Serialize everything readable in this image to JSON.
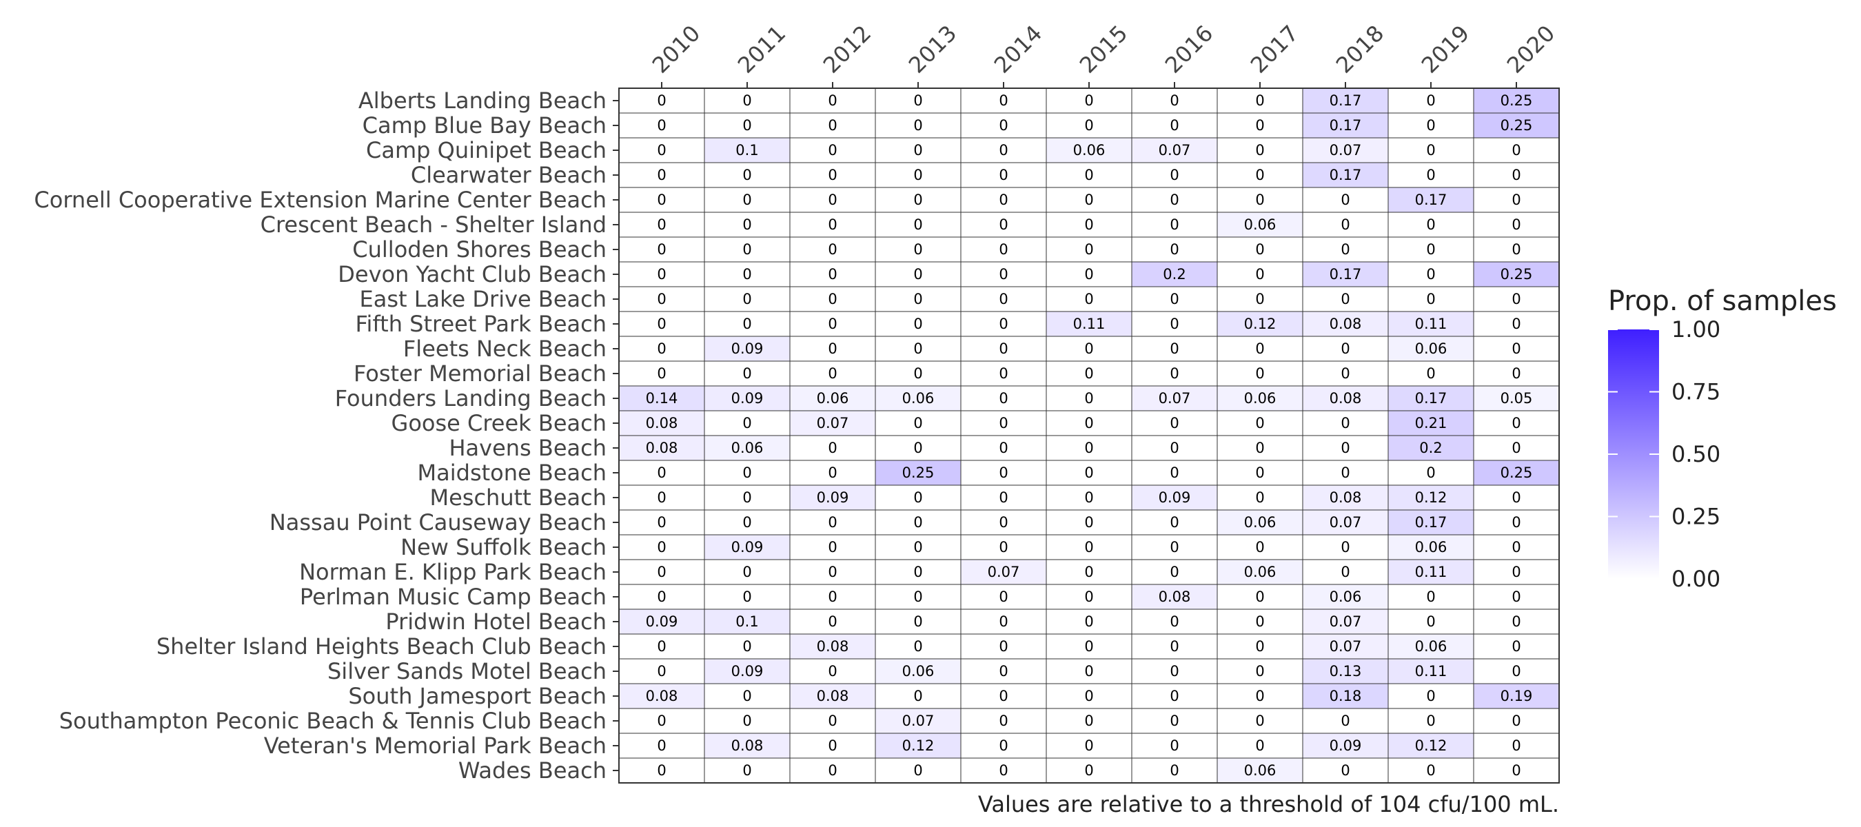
{
  "chart_data": {
    "type": "heatmap",
    "title": "",
    "xlabel": "",
    "ylabel": "",
    "x": [
      "2010",
      "2011",
      "2012",
      "2013",
      "2014",
      "2015",
      "2016",
      "2017",
      "2018",
      "2019",
      "2020"
    ],
    "y": [
      "Alberts Landing Beach",
      "Camp Blue Bay Beach",
      "Camp Quinipet Beach",
      "Clearwater Beach",
      "Cornell Cooperative Extension Marine Center Beach",
      "Crescent Beach - Shelter Island",
      "Culloden Shores Beach",
      "Devon Yacht Club Beach",
      "East Lake Drive Beach",
      "Fifth Street Park Beach",
      "Fleets Neck Beach",
      "Foster Memorial Beach",
      "Founders Landing Beach",
      "Goose Creek Beach",
      "Havens Beach",
      "Maidstone Beach",
      "Meschutt Beach",
      "Nassau Point Causeway Beach",
      "New Suffolk Beach",
      "Norman E. Klipp Park Beach",
      "Perlman Music Camp Beach",
      "Pridwin Hotel Beach",
      "Shelter Island Heights Beach Club Beach",
      "Silver Sands Motel Beach",
      "South Jamesport Beach",
      "Southampton Peconic Beach & Tennis Club Beach",
      "Veteran's Memorial Park Beach",
      "Wades Beach"
    ],
    "values": [
      [
        0,
        0,
        0,
        0,
        0,
        0,
        0,
        0,
        0.17,
        0,
        0.25
      ],
      [
        0,
        0,
        0,
        0,
        0,
        0,
        0,
        0,
        0.17,
        0,
        0.25
      ],
      [
        0,
        0.1,
        0,
        0,
        0,
        0.06,
        0.07,
        0,
        0.07,
        0,
        0
      ],
      [
        0,
        0,
        0,
        0,
        0,
        0,
        0,
        0,
        0.17,
        0,
        0
      ],
      [
        0,
        0,
        0,
        0,
        0,
        0,
        0,
        0,
        0,
        0.17,
        0
      ],
      [
        0,
        0,
        0,
        0,
        0,
        0,
        0,
        0.06,
        0,
        0,
        0
      ],
      [
        0,
        0,
        0,
        0,
        0,
        0,
        0,
        0,
        0,
        0,
        0
      ],
      [
        0,
        0,
        0,
        0,
        0,
        0,
        0.2,
        0,
        0.17,
        0,
        0.25
      ],
      [
        0,
        0,
        0,
        0,
        0,
        0,
        0,
        0,
        0,
        0,
        0
      ],
      [
        0,
        0,
        0,
        0,
        0,
        0.11,
        0,
        0.12,
        0.08,
        0.11,
        0
      ],
      [
        0,
        0.09,
        0,
        0,
        0,
        0,
        0,
        0,
        0,
        0.06,
        0
      ],
      [
        0,
        0,
        0,
        0,
        0,
        0,
        0,
        0,
        0,
        0,
        0
      ],
      [
        0.14,
        0.09,
        0.06,
        0.06,
        0,
        0,
        0.07,
        0.06,
        0.08,
        0.17,
        0.05
      ],
      [
        0.08,
        0,
        0.07,
        0,
        0,
        0,
        0,
        0,
        0,
        0.21,
        0
      ],
      [
        0.08,
        0.06,
        0,
        0,
        0,
        0,
        0,
        0,
        0,
        0.2,
        0
      ],
      [
        0,
        0,
        0,
        0.25,
        0,
        0,
        0,
        0,
        0,
        0,
        0.25
      ],
      [
        0,
        0,
        0.09,
        0,
        0,
        0,
        0.09,
        0,
        0.08,
        0.12,
        0
      ],
      [
        0,
        0,
        0,
        0,
        0,
        0,
        0,
        0.06,
        0.07,
        0.17,
        0
      ],
      [
        0,
        0.09,
        0,
        0,
        0,
        0,
        0,
        0,
        0,
        0.06,
        0
      ],
      [
        0,
        0,
        0,
        0,
        0.07,
        0,
        0,
        0.06,
        0,
        0.11,
        0
      ],
      [
        0,
        0,
        0,
        0,
        0,
        0,
        0.08,
        0,
        0.06,
        0,
        0
      ],
      [
        0.09,
        0.1,
        0,
        0,
        0,
        0,
        0,
        0,
        0.07,
        0,
        0
      ],
      [
        0,
        0,
        0.08,
        0,
        0,
        0,
        0,
        0,
        0.07,
        0.06,
        0
      ],
      [
        0,
        0.09,
        0,
        0.06,
        0,
        0,
        0,
        0,
        0.13,
        0.11,
        0
      ],
      [
        0.08,
        0,
        0.08,
        0,
        0,
        0,
        0,
        0,
        0.18,
        0,
        0.19
      ],
      [
        0,
        0,
        0,
        0.07,
        0,
        0,
        0,
        0,
        0,
        0,
        0
      ],
      [
        0,
        0.08,
        0,
        0.12,
        0,
        0,
        0,
        0,
        0.09,
        0.12,
        0
      ],
      [
        0,
        0,
        0,
        0,
        0,
        0,
        0,
        0.06,
        0,
        0,
        0
      ]
    ],
    "color_range": [
      0,
      1
    ],
    "color_low": "#ffffff",
    "color_high": "#3f1fff",
    "legend": {
      "title": "Prop. of samples",
      "ticks": [
        "1.00",
        "0.75",
        "0.50",
        "0.25",
        "0.00"
      ],
      "tick_values": [
        1,
        0.75,
        0.5,
        0.25,
        0
      ],
      "position": "right"
    },
    "caption": "Values are relative to a threshold of 104 cfu/100 mL."
  }
}
